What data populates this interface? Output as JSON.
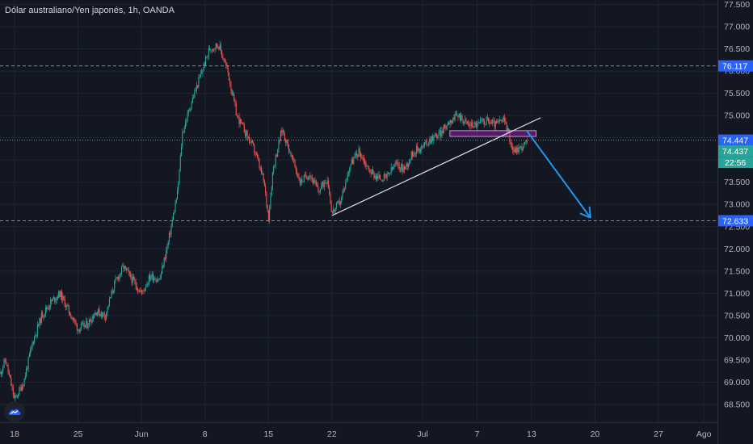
{
  "header": {
    "title": "Dólar australiano/Yen japonés, 1h, OANDA"
  },
  "chart_data": {
    "type": "candlestick",
    "symbol": "AUDJPY",
    "timeframe": "1h",
    "source": "OANDA",
    "y_range": [
      68.1,
      77.6
    ],
    "x_range_days": [
      -1.6,
      77.5
    ],
    "y_ticks": [
      "68.500",
      "69.000",
      "69.500",
      "70.000",
      "70.500",
      "71.000",
      "71.500",
      "72.000",
      "72.500",
      "73.000",
      "73.500",
      "74.000",
      "74.500",
      "75.000",
      "75.500",
      "76.000",
      "76.500",
      "77.000",
      "77.500"
    ],
    "y_tick_values": [
      68.5,
      69.0,
      69.5,
      70.0,
      70.5,
      71.0,
      71.5,
      72.0,
      72.5,
      73.0,
      73.5,
      74.0,
      74.5,
      75.0,
      75.5,
      76.0,
      76.5,
      77.0,
      77.5
    ],
    "x_ticks": [
      {
        "label": "18",
        "day": 0
      },
      {
        "label": "25",
        "day": 7
      },
      {
        "label": "Jun",
        "day": 14
      },
      {
        "label": "8",
        "day": 21
      },
      {
        "label": "15",
        "day": 28
      },
      {
        "label": "22",
        "day": 35
      },
      {
        "label": "Jul",
        "day": 45
      },
      {
        "label": "7",
        "day": 51
      },
      {
        "label": "13",
        "day": 57
      },
      {
        "label": "20",
        "day": 64
      },
      {
        "label": "27",
        "day": 71
      },
      {
        "label": "Ago",
        "day": 76
      }
    ],
    "price_path": [
      [
        -1.6,
        69.2
      ],
      [
        -1.0,
        69.5
      ],
      [
        0.0,
        68.6
      ],
      [
        1.0,
        69.0
      ],
      [
        2.0,
        69.9
      ],
      [
        3.0,
        70.5
      ],
      [
        4.0,
        70.8
      ],
      [
        5.0,
        71.0
      ],
      [
        6.0,
        70.6
      ],
      [
        7.0,
        70.2
      ],
      [
        8.0,
        70.3
      ],
      [
        9.0,
        70.6
      ],
      [
        10.0,
        70.5
      ],
      [
        11.0,
        71.2
      ],
      [
        12.0,
        71.6
      ],
      [
        13.0,
        71.3
      ],
      [
        14.0,
        71.0
      ],
      [
        15.0,
        71.4
      ],
      [
        16.0,
        71.3
      ],
      [
        17.0,
        72.2
      ],
      [
        18.0,
        73.3
      ],
      [
        18.5,
        74.6
      ],
      [
        19.5,
        75.3
      ],
      [
        20.5,
        75.9
      ],
      [
        21.5,
        76.5
      ],
      [
        22.5,
        76.6
      ],
      [
        23.5,
        76.0
      ],
      [
        24.5,
        75.0
      ],
      [
        25.5,
        74.6
      ],
      [
        26.5,
        74.2
      ],
      [
        27.5,
        73.5
      ],
      [
        28.0,
        72.7
      ],
      [
        28.5,
        73.8
      ],
      [
        29.5,
        74.7
      ],
      [
        30.5,
        74.1
      ],
      [
        31.5,
        73.5
      ],
      [
        32.5,
        73.7
      ],
      [
        33.5,
        73.3
      ],
      [
        34.5,
        73.6
      ],
      [
        35.0,
        72.8
      ],
      [
        36.0,
        73.1
      ],
      [
        37.0,
        73.9
      ],
      [
        38.0,
        74.2
      ],
      [
        39.0,
        73.8
      ],
      [
        40.0,
        73.6
      ],
      [
        41.0,
        73.6
      ],
      [
        42.0,
        73.9
      ],
      [
        43.0,
        73.8
      ],
      [
        44.0,
        74.2
      ],
      [
        45.0,
        74.3
      ],
      [
        46.0,
        74.5
      ],
      [
        47.0,
        74.6
      ],
      [
        48.0,
        74.9
      ],
      [
        49.0,
        75.0
      ],
      [
        50.0,
        74.8
      ],
      [
        51.0,
        74.8
      ],
      [
        52.0,
        74.9
      ],
      [
        53.0,
        74.8
      ],
      [
        54.0,
        74.9
      ],
      [
        55.0,
        74.2
      ],
      [
        56.0,
        74.3
      ],
      [
        56.5,
        74.4
      ]
    ],
    "horizontal_levels": [
      {
        "price": 76.117,
        "label": "76.117",
        "color": "#5b8def",
        "style": "dashed"
      },
      {
        "price": 72.633,
        "label": "72.633",
        "color": "#5b8def",
        "style": "dashed"
      },
      {
        "price": 74.447,
        "label": "74.447",
        "color": "#5b8def",
        "style": "dotted"
      }
    ],
    "current_price": {
      "price": 74.437,
      "label": "74.437",
      "countdown": "22:56",
      "color": "#26a69a"
    },
    "trendline": {
      "from": [
        35.0,
        72.75
      ],
      "to": [
        58.0,
        74.95
      ],
      "color": "#e0e3eb"
    },
    "resistance_zone": {
      "x0": 48.0,
      "x1": 57.5,
      "y0": 74.53,
      "y1": 74.66,
      "color": "#9c27b0"
    },
    "arrow": {
      "from": [
        56.5,
        74.65
      ],
      "to": [
        63.5,
        72.7
      ],
      "color": "#2196f3"
    },
    "colors": {
      "up": "#26a69a",
      "down": "#ef5350",
      "grid": "#1f2433",
      "background": "#131722",
      "axis_text": "#b2b5be"
    }
  }
}
